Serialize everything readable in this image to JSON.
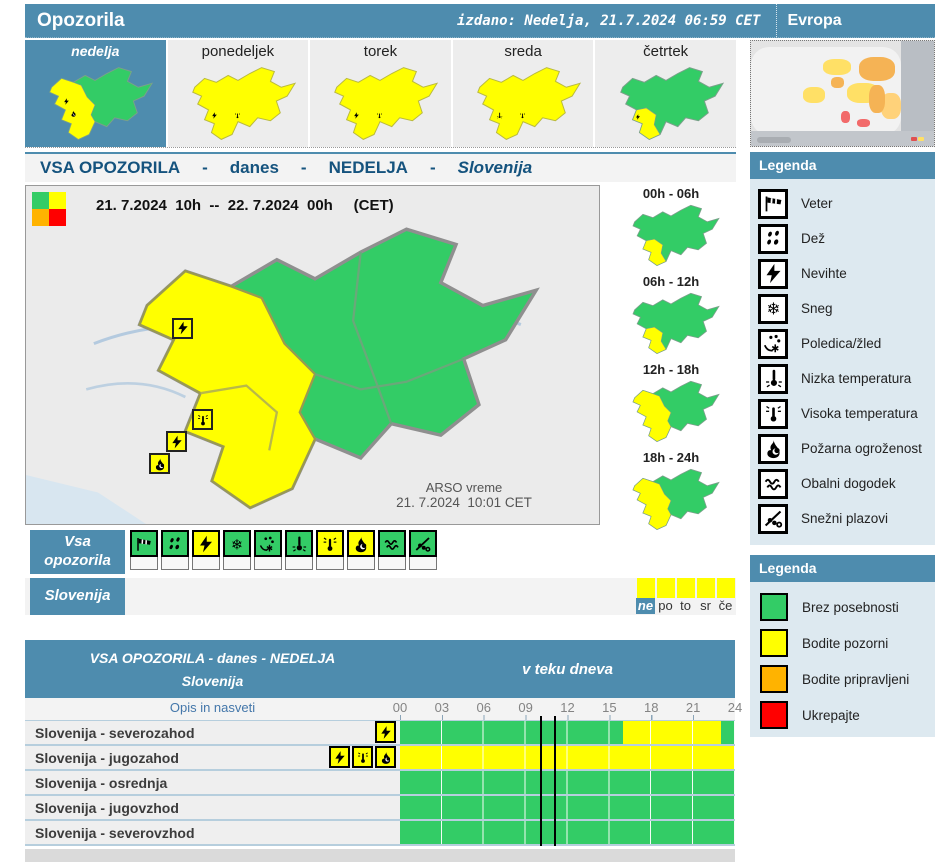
{
  "header": {
    "title": "Opozorila",
    "issued": "izdano: Nedelja, 21.7.2024 06:59 CET",
    "europe_label": "Evropa"
  },
  "colors": {
    "accent_blue": "#4e8cae",
    "title_navy": "#15537e",
    "green": "#33cc66",
    "yellow": "#ffff00",
    "orange": "#ffb300",
    "red": "#ff0000"
  },
  "day_tabs": [
    {
      "label": "nedelja",
      "selected": true
    },
    {
      "label": "ponedeljek",
      "selected": false
    },
    {
      "label": "torek",
      "selected": false
    },
    {
      "label": "sreda",
      "selected": false
    },
    {
      "label": "četrtek",
      "selected": false
    }
  ],
  "main_title": {
    "segments": [
      "VSA OPOZORILA",
      "-",
      "danes",
      "-",
      "NEDELJA",
      "-"
    ],
    "region": "Slovenija"
  },
  "main_map": {
    "period": "21. 7.2024  10h  --  22. 7.2024  00h     (CET)",
    "stamp_line1": "ARSO vreme",
    "stamp_line2": "21. 7.2024  10:01 CET",
    "corner_colors": [
      "#33cc66",
      "#ffff00",
      "#ffb300",
      "#ff0000"
    ],
    "icons": [
      {
        "name": "nevihte"
      },
      {
        "name": "visoka-temperatura"
      },
      {
        "name": "nevihte"
      },
      {
        "name": "pozarna-ogrozenost"
      }
    ]
  },
  "time_slots": [
    {
      "label": "00h - 06h"
    },
    {
      "label": "06h - 12h"
    },
    {
      "label": "12h - 18h"
    },
    {
      "label": "18h - 24h"
    }
  ],
  "legend_icons": {
    "title": "Legenda",
    "items": [
      {
        "icon": "veter-icon",
        "label": "Veter"
      },
      {
        "icon": "dez-icon",
        "label": "Dež"
      },
      {
        "icon": "nevihte-icon",
        "label": "Nevihte"
      },
      {
        "icon": "sneg-icon",
        "label": "Sneg"
      },
      {
        "icon": "poledica-icon",
        "label": "Poledica/žled"
      },
      {
        "icon": "nizka-temperatura-icon",
        "label": "Nizka temperatura"
      },
      {
        "icon": "visoka-temperatura-icon",
        "label": "Visoka temperatura"
      },
      {
        "icon": "pozarna-ogrozenost-icon",
        "label": "Požarna ogroženost"
      },
      {
        "icon": "obalni-dogodek-icon",
        "label": "Obalni dogodek"
      },
      {
        "icon": "snezni-plazovi-icon",
        "label": "Snežni plazovi"
      }
    ]
  },
  "vsa_opozorila": {
    "label_line1": "Vsa",
    "label_line2": "opozorila",
    "cells": [
      {
        "icon": "veter-icon",
        "color": "#33cc66"
      },
      {
        "icon": "dez-icon",
        "color": "#33cc66"
      },
      {
        "icon": "nevihte-icon",
        "color": "#ffff00"
      },
      {
        "icon": "sneg-icon",
        "color": "#33cc66"
      },
      {
        "icon": "poledica-icon",
        "color": "#33cc66"
      },
      {
        "icon": "nizka-temperatura-icon",
        "color": "#33cc66"
      },
      {
        "icon": "visoka-temperatura-icon",
        "color": "#ffff00"
      },
      {
        "icon": "pozarna-ogrozenost-icon",
        "color": "#ffff00"
      },
      {
        "icon": "obalni-dogodek-icon",
        "color": "#33cc66"
      },
      {
        "icon": "snezni-plazovi-icon",
        "color": "#33cc66"
      }
    ]
  },
  "slovenija_row": {
    "label": "Slovenija",
    "days": [
      {
        "abbr": "ne",
        "color": "#ffff00",
        "selected": true
      },
      {
        "abbr": "po",
        "color": "#ffff00",
        "selected": false
      },
      {
        "abbr": "to",
        "color": "#ffff00",
        "selected": false
      },
      {
        "abbr": "sr",
        "color": "#ffff00",
        "selected": false
      },
      {
        "abbr": "če",
        "color": "#ffff00",
        "selected": false
      }
    ]
  },
  "legend_levels": {
    "title": "Legenda",
    "items": [
      {
        "color": "#33cc66",
        "label": "Brez posebnosti"
      },
      {
        "color": "#ffff00",
        "label": "Bodite pozorni"
      },
      {
        "color": "#ffb300",
        "label": "Bodite pripravljeni"
      },
      {
        "color": "#ff0000",
        "label": "Ukrepajte"
      }
    ]
  },
  "bottom_table": {
    "header_line1": "VSA OPOZORILA - danes - NEDELJA",
    "header_line2": "Slovenija",
    "header_right": "v teku dneva",
    "subheader_left": "Opis in nasveti",
    "hours": [
      "00",
      "03",
      "06",
      "09",
      "12",
      "15",
      "18",
      "21",
      "24"
    ],
    "marker_hours": [
      10,
      11
    ],
    "rows": [
      {
        "label": "Slovenija - severozahod",
        "icons": [
          "nevihte-icon"
        ],
        "segments": [
          {
            "from": 0,
            "to": 16,
            "color": "#33cc66"
          },
          {
            "from": 16,
            "to": 23,
            "color": "#ffff00"
          },
          {
            "from": 23,
            "to": 24,
            "color": "#33cc66"
          }
        ]
      },
      {
        "label": "Slovenija - jugozahod",
        "icons": [
          "nevihte-icon",
          "visoka-temperatura-icon",
          "pozarna-ogrozenost-icon"
        ],
        "segments": [
          {
            "from": 0,
            "to": 24,
            "color": "#ffff00"
          }
        ]
      },
      {
        "label": "Slovenija - osrednja",
        "icons": [],
        "segments": [
          {
            "from": 0,
            "to": 24,
            "color": "#33cc66"
          }
        ]
      },
      {
        "label": "Slovenija - jugovzhod",
        "icons": [],
        "segments": [
          {
            "from": 0,
            "to": 24,
            "color": "#33cc66"
          }
        ]
      },
      {
        "label": "Slovenija - severovzhod",
        "icons": [],
        "segments": [
          {
            "from": 0,
            "to": 24,
            "color": "#33cc66"
          }
        ]
      }
    ]
  }
}
